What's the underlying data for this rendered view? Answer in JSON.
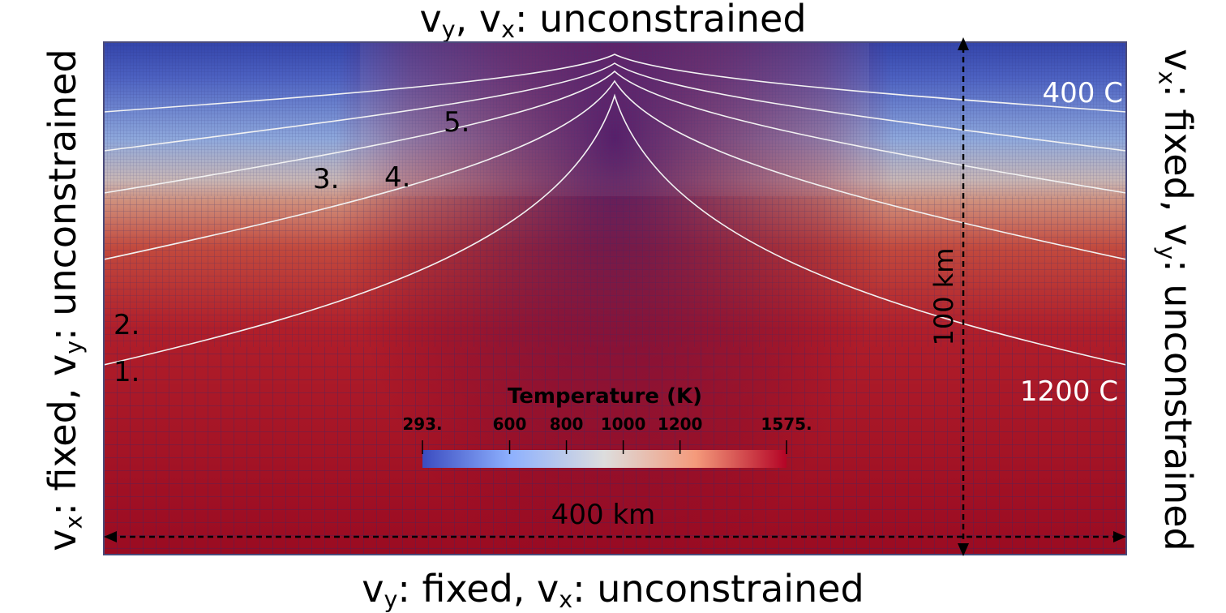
{
  "boundaries": {
    "top": [
      {
        "sym": "v",
        "sub": "y"
      },
      {
        "text": ", "
      },
      {
        "sym": "v",
        "sub": "x"
      },
      {
        "text": ": unconstrained"
      }
    ],
    "bottom": [
      {
        "sym": "v",
        "sub": "y"
      },
      {
        "text": ": fixed, "
      },
      {
        "sym": "v",
        "sub": "x"
      },
      {
        "text": ": unconstrained"
      }
    ],
    "left": [
      {
        "sym": "v",
        "sub": "x"
      },
      {
        "text": ": fixed, "
      },
      {
        "sym": "v",
        "sub": "y"
      },
      {
        "text": ": unconstrained"
      }
    ],
    "right": [
      {
        "sym": "v",
        "sub": "x"
      },
      {
        "text": ": fixed, "
      },
      {
        "sym": "v",
        "sub": "y"
      },
      {
        "text": ": unconstrained"
      }
    ]
  },
  "domain": {
    "width_label": "400 km",
    "height_label": "100 km",
    "isotherm_top": "400 C",
    "isotherm_bottom": "1200 C"
  },
  "isotherm_labels": [
    "1.",
    "2.",
    "3.",
    "4.",
    "5."
  ],
  "colorbar": {
    "title": "Temperature (K)",
    "min": 293,
    "max": 1575,
    "ticks": [
      {
        "value": 293,
        "label": "293."
      },
      {
        "value": 600,
        "label": "600"
      },
      {
        "value": 800,
        "label": "800"
      },
      {
        "value": 1000,
        "label": "1000"
      },
      {
        "value": 1200,
        "label": "1200"
      },
      {
        "value": 1575,
        "label": "1575."
      }
    ]
  },
  "colors": {
    "cold": "#3b4cc0",
    "mid": "#dddddd",
    "hot": "#b40426",
    "deep": "#8e0322",
    "plume_core": "#4a0a5a",
    "mesh": "#2a2a70",
    "isotherm_line": "#f2f2f2"
  }
}
